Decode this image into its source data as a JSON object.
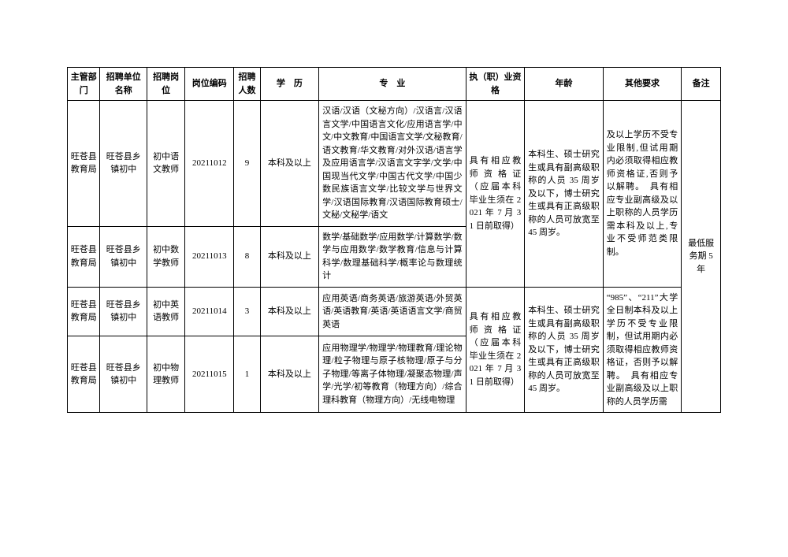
{
  "headers": {
    "dept": "主管部门",
    "unit": "招聘单位名称",
    "post": "招聘岗位",
    "code": "岗位编码",
    "num": "招聘人数",
    "edu": "学　历",
    "major": "专　业",
    "qual": "执（职）业资格",
    "age": "年龄",
    "other": "其他要求",
    "note": "备注"
  },
  "rows": [
    {
      "dept": "旺苍县教育局",
      "unit": "旺苍县乡镇初中",
      "post": "初中语文教师",
      "code": "20211012",
      "num": "9",
      "edu": "本科及以上",
      "major": "汉语/汉语（文秘方向）/汉语言/汉语言文学/中国语言文化/应用语言学/中文/中文教育/中国语言文学/文秘教育/语文教育/华文教育/对外汉语/语言学及应用语言学/汉语言文字学/文学/中国现当代文学/中国古代文学/中国少数民族语言文学/比较文学与世界文学/汉语国际教育/汉语国际教育硕士/文秘/文秘学/语文"
    },
    {
      "dept": "旺苍县教育局",
      "unit": "旺苍县乡镇初中",
      "post": "初中数学教师",
      "code": "20211013",
      "num": "8",
      "edu": "本科及以上",
      "major": "数学/基础数学/应用数学/计算数学/数学与应用数学/数学教育/信息与计算科学/数理基础科学/概率论与数理统计"
    },
    {
      "dept": "旺苍县教育局",
      "unit": "旺苍县乡镇初中",
      "post": "初中英语教师",
      "code": "20211014",
      "num": "3",
      "edu": "本科及以上",
      "major": "应用英语/商务英语/旅游英语/外贸英语/英语教育/英语/英语语言文学/商贸英语"
    },
    {
      "dept": "旺苍县教育局",
      "unit": "旺苍县乡镇初中",
      "post": "初中物理教师",
      "code": "20211015",
      "num": "1",
      "edu": "本科及以上",
      "major": "应用物理学/物理学/物理教育/理论物理/粒子物理与原子核物理/原子与分子物理/等离子体物理/凝聚态物理/声学/光学/初等教育（物理方向）/综合理科教育（物理方向）/无线电物理"
    }
  ],
  "merged": {
    "qual1": "具有相应教师资格证（应届本科毕业生须在 2021 年 7 月 31 日前取得）",
    "age1": "本科生、硕士研究生或具有副高级职称的人员 35 周岁及以下，博士研究生或具有正高级职称的人员可放宽至 45 周岁。",
    "other1": "及以上学历不受专业限制,但试用期内必须取得相应教师资格证,否则予以解聘。　具有相应专业副高级及以上职称的人员学历需本科及以上,专业不受师范类限制。",
    "qual2": "具有相应教师资格证（应届本科毕业生须在 2021 年 7 月 31 日前取得）",
    "age2": "本科生、硕士研究生或具有副高级职称的人员 35 周岁及以下，博士研究生或具有正高级职称的人员可放宽至 45 周岁。",
    "other2": "“985”、“211”大学全日制本科及以上学历不受专业限制，但试用期内必须取得相应教师资格证，否则予以解聘。　具有相应专业副高级及以上职称的人员学历需",
    "note": "最低服务期 5 年"
  }
}
